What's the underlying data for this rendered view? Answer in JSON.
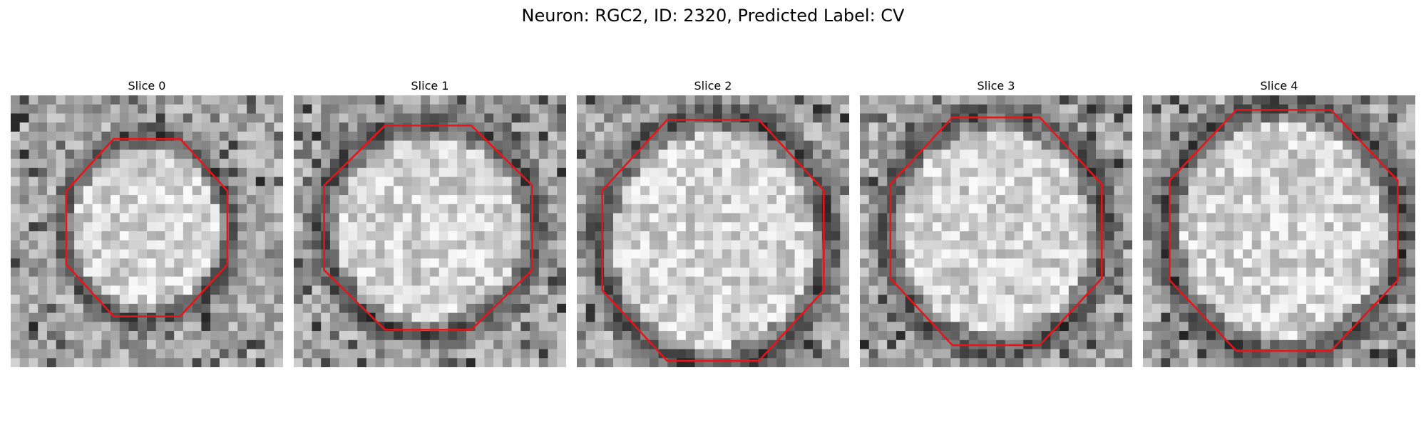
{
  "figure": {
    "title": "Neuron: RGC2, ID: 2320, Predicted Label: CV"
  },
  "panels": [
    {
      "title": "Slice 0"
    },
    {
      "title": "Slice 1"
    },
    {
      "title": "Slice 2"
    },
    {
      "title": "Slice 3"
    },
    {
      "title": "Slice 4"
    }
  ],
  "colors": {
    "contour": "#e8141a",
    "background": "#ffffff"
  }
}
